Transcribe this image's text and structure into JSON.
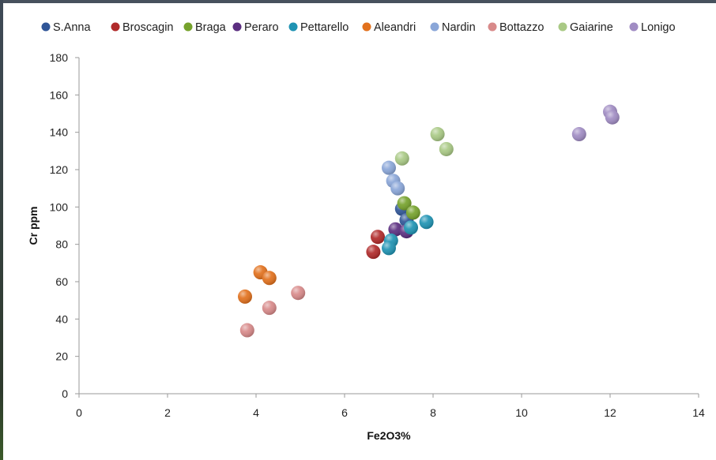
{
  "chart_data": {
    "type": "scatter",
    "title": "",
    "xlabel": "Fe2O3%",
    "ylabel": "Cr ppm",
    "xlim": [
      0,
      14
    ],
    "ylim": [
      0,
      180
    ],
    "xticks": [
      "0",
      "2",
      "4",
      "6",
      "8",
      "10",
      "12",
      "14"
    ],
    "yticks": [
      "0",
      "20",
      "40",
      "60",
      "80",
      "100",
      "120",
      "140",
      "160",
      "180"
    ],
    "grid": false,
    "legend_position": "top",
    "series": [
      {
        "name": "S.Anna",
        "color": "#2f5597",
        "points": [
          [
            7.3,
            99
          ],
          [
            7.4,
            93
          ]
        ]
      },
      {
        "name": "Broscagin",
        "color": "#b02a2a",
        "points": [
          [
            6.75,
            84
          ],
          [
            6.65,
            76
          ]
        ]
      },
      {
        "name": "Braga",
        "color": "#76a22c",
        "points": [
          [
            7.35,
            102
          ],
          [
            7.55,
            97
          ]
        ]
      },
      {
        "name": "Peraro",
        "color": "#5b2e80",
        "points": [
          [
            7.15,
            88
          ],
          [
            7.4,
            87
          ]
        ]
      },
      {
        "name": "Pettarello",
        "color": "#1f93b3",
        "points": [
          [
            7.85,
            92
          ],
          [
            7.5,
            89
          ],
          [
            7.05,
            82
          ],
          [
            7.0,
            78
          ]
        ]
      },
      {
        "name": "Aleandri",
        "color": "#e2711d",
        "points": [
          [
            4.1,
            65
          ],
          [
            4.3,
            62
          ],
          [
            3.75,
            52
          ]
        ]
      },
      {
        "name": "Nardin",
        "color": "#8aa6d8",
        "points": [
          [
            7.0,
            121
          ],
          [
            7.1,
            114
          ],
          [
            7.2,
            110
          ]
        ]
      },
      {
        "name": "Bottazzo",
        "color": "#d88a8a",
        "points": [
          [
            4.95,
            54
          ],
          [
            4.3,
            46
          ],
          [
            3.8,
            34
          ]
        ]
      },
      {
        "name": "Gaiarine",
        "color": "#a9c985",
        "points": [
          [
            8.1,
            139
          ],
          [
            8.3,
            131
          ],
          [
            7.3,
            126
          ]
        ]
      },
      {
        "name": "Lonigo",
        "color": "#a08cc3",
        "points": [
          [
            12.0,
            151
          ],
          [
            12.05,
            148
          ],
          [
            11.3,
            139
          ]
        ]
      }
    ]
  }
}
